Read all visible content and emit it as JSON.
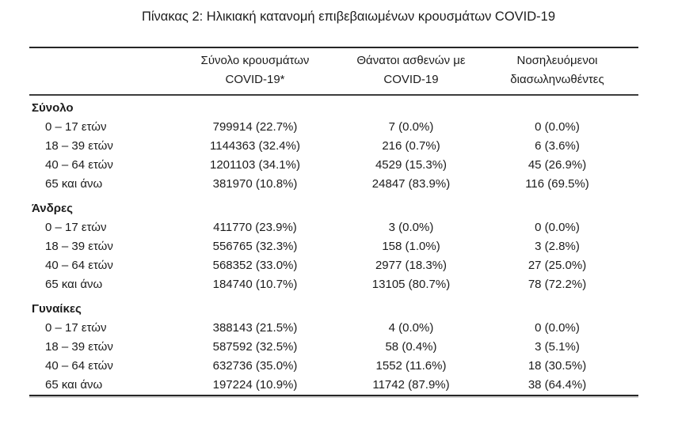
{
  "page": {
    "title": "Πίνακας 2: Ηλικιακή κατανομή επιβεβαιωμένων κρουσμάτων COVID-19"
  },
  "colors": {
    "text": "#1c1c1c",
    "border_heavy": "#262626",
    "border_divider": "#3c3c3c",
    "background": "#ffffff"
  },
  "table": {
    "headers": [
      {
        "line1": "Σύνολο κρουσμάτων",
        "line2": "COVID-19*"
      },
      {
        "line1": "Θάνατοι ασθενών με",
        "line2": "COVID-19"
      },
      {
        "line1": "Νοσηλευόμενοι",
        "line2": "διασωληνωθέντες"
      }
    ],
    "sections": [
      {
        "label": "Σύνολο",
        "rows": [
          {
            "age": "0 – 17 ετών",
            "cases": "799914 (22.7%)",
            "deaths": "7 (0.0%)",
            "intubated": "0 (0.0%)"
          },
          {
            "age": "18 – 39 ετών",
            "cases": "1144363 (32.4%)",
            "deaths": "216 (0.7%)",
            "intubated": "6 (3.6%)"
          },
          {
            "age": "40 – 64 ετών",
            "cases": "1201103 (34.1%)",
            "deaths": "4529 (15.3%)",
            "intubated": "45 (26.9%)"
          },
          {
            "age": "65 και άνω",
            "cases": "381970 (10.8%)",
            "deaths": "24847 (83.9%)",
            "intubated": "116 (69.5%)"
          }
        ]
      },
      {
        "label": "Άνδρες",
        "rows": [
          {
            "age": "0 – 17 ετών",
            "cases": "411770 (23.9%)",
            "deaths": "3 (0.0%)",
            "intubated": "0 (0.0%)"
          },
          {
            "age": "18 – 39 ετών",
            "cases": "556765 (32.3%)",
            "deaths": "158 (1.0%)",
            "intubated": "3 (2.8%)"
          },
          {
            "age": "40 – 64 ετών",
            "cases": "568352 (33.0%)",
            "deaths": "2977 (18.3%)",
            "intubated": "27 (25.0%)"
          },
          {
            "age": "65 και άνω",
            "cases": "184740 (10.7%)",
            "deaths": "13105 (80.7%)",
            "intubated": "78 (72.2%)"
          }
        ]
      },
      {
        "label": "Γυναίκες",
        "rows": [
          {
            "age": "0 – 17 ετών",
            "cases": "388143 (21.5%)",
            "deaths": "4 (0.0%)",
            "intubated": "0 (0.0%)"
          },
          {
            "age": "18 – 39 ετών",
            "cases": "587592 (32.5%)",
            "deaths": "58 (0.4%)",
            "intubated": "3 (5.1%)"
          },
          {
            "age": "40 – 64 ετών",
            "cases": "632736 (35.0%)",
            "deaths": "1552 (11.6%)",
            "intubated": "18 (30.5%)"
          },
          {
            "age": "65 και άνω",
            "cases": "197224 (10.9%)",
            "deaths": "11742 (87.9%)",
            "intubated": "38 (64.4%)"
          }
        ]
      }
    ]
  }
}
